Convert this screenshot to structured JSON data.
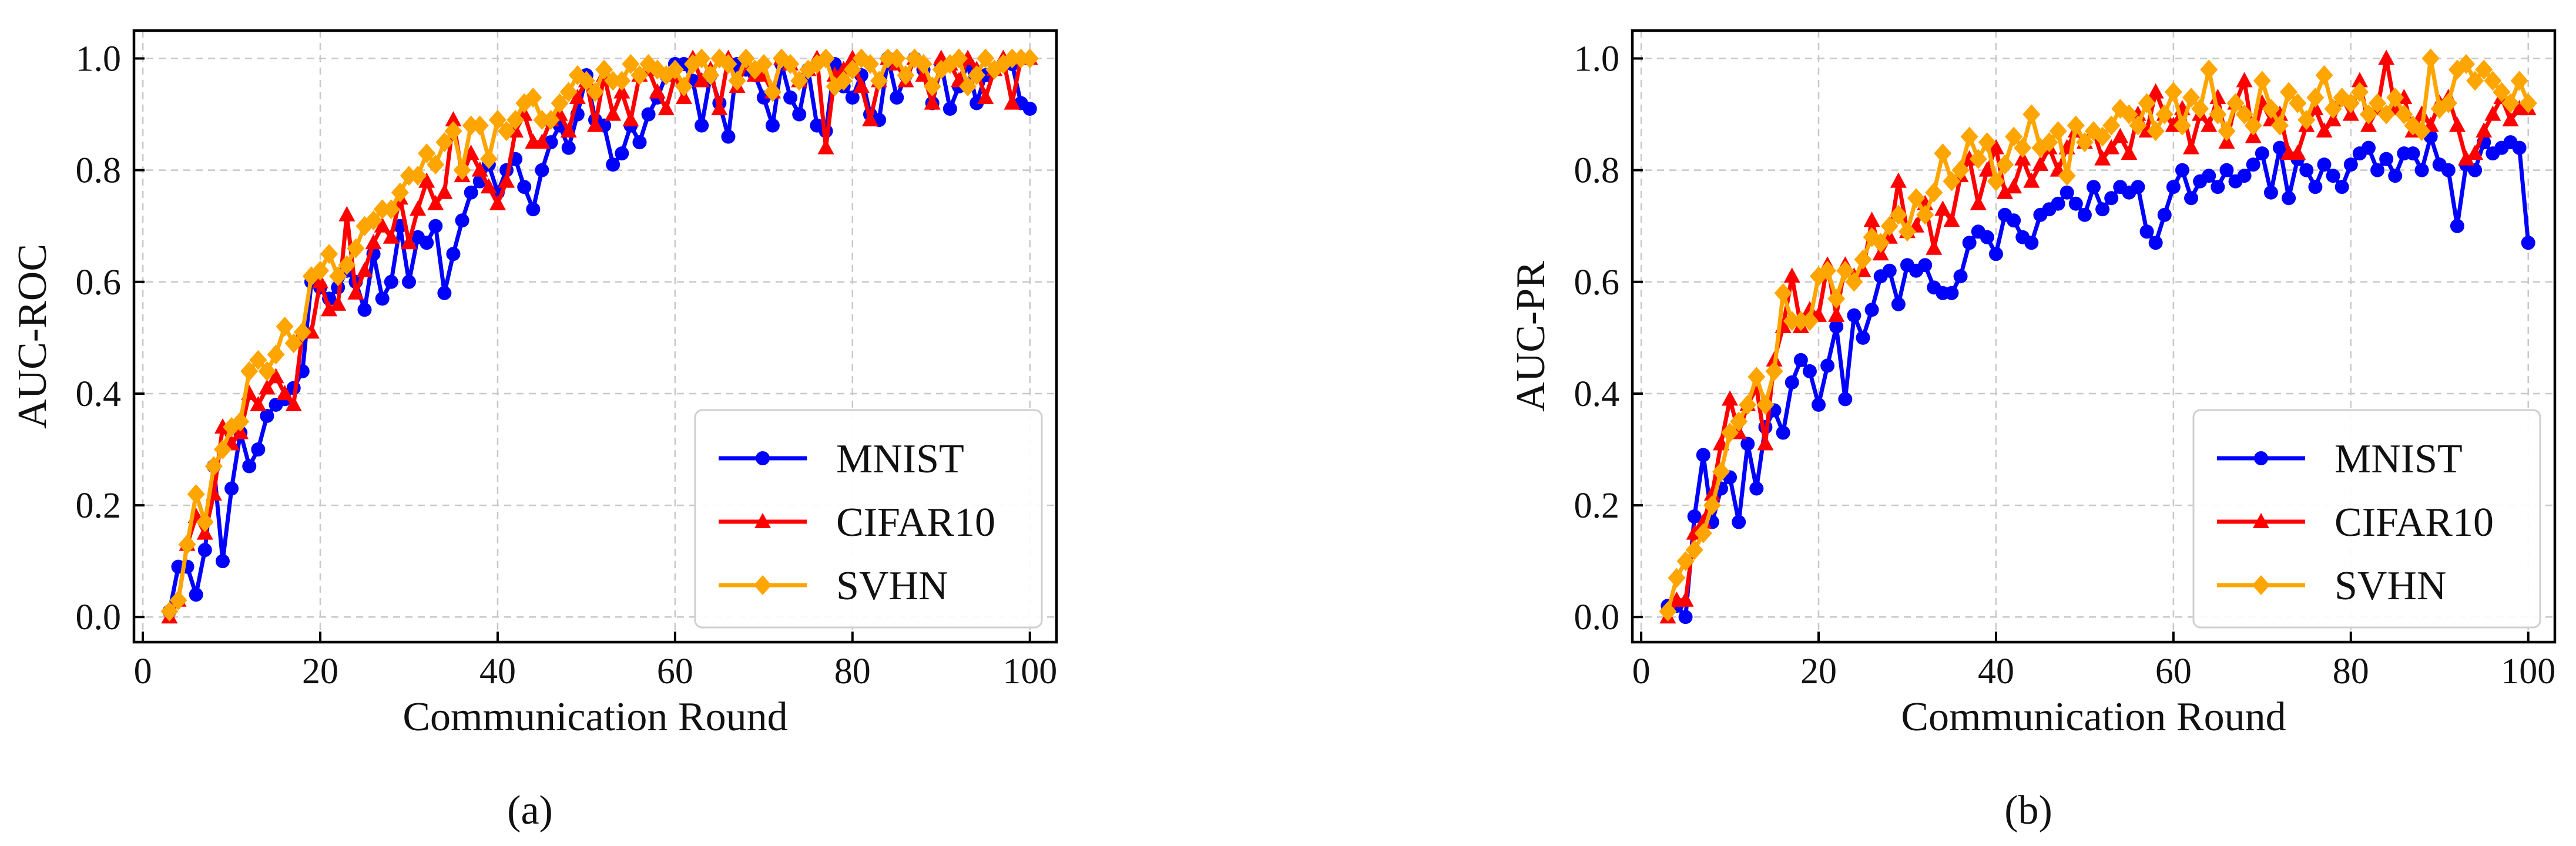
{
  "chart_data": [
    {
      "type": "line",
      "panel": "a",
      "caption": "(a)",
      "xlabel": "Communication Round",
      "ylabel": "AUC-ROC",
      "xlim": [
        -1,
        103
      ],
      "ylim": [
        -0.045,
        1.05
      ],
      "xticks": [
        0,
        20,
        40,
        60,
        80,
        100
      ],
      "yticks": [
        0.0,
        0.2,
        0.4,
        0.6,
        0.8,
        1.0
      ],
      "grid": true,
      "legend_position": "lower-right",
      "x": [
        3,
        4,
        5,
        6,
        7,
        8,
        9,
        10,
        11,
        12,
        13,
        14,
        15,
        16,
        17,
        18,
        19,
        20,
        21,
        22,
        23,
        24,
        25,
        26,
        27,
        28,
        29,
        30,
        31,
        32,
        33,
        34,
        35,
        36,
        37,
        38,
        39,
        40,
        41,
        42,
        43,
        44,
        45,
        46,
        47,
        48,
        49,
        50,
        51,
        52,
        53,
        54,
        55,
        56,
        57,
        58,
        59,
        60,
        61,
        62,
        63,
        64,
        65,
        66,
        67,
        68,
        69,
        70,
        71,
        72,
        73,
        74,
        75,
        76,
        77,
        78,
        79,
        80,
        81,
        82,
        83,
        84,
        85,
        86,
        87,
        88,
        89,
        90,
        91,
        92,
        93,
        94,
        95,
        96,
        97,
        98,
        99,
        100
      ],
      "series": [
        {
          "name": "MNIST",
          "color": "#0000ff",
          "marker": "circle",
          "values": [
            0.01,
            0.09,
            0.09,
            0.04,
            0.12,
            0.27,
            0.1,
            0.23,
            0.33,
            0.27,
            0.3,
            0.36,
            0.38,
            0.39,
            0.41,
            0.44,
            0.6,
            0.59,
            0.57,
            0.59,
            0.62,
            0.6,
            0.55,
            0.65,
            0.57,
            0.6,
            0.7,
            0.6,
            0.68,
            0.67,
            0.7,
            0.58,
            0.65,
            0.71,
            0.76,
            0.78,
            0.81,
            0.76,
            0.8,
            0.82,
            0.77,
            0.73,
            0.8,
            0.85,
            0.88,
            0.84,
            0.9,
            0.97,
            0.89,
            0.88,
            0.81,
            0.83,
            0.88,
            0.85,
            0.9,
            0.93,
            0.97,
            0.99,
            0.99,
            0.96,
            0.88,
            0.97,
            0.92,
            0.86,
            0.99,
            0.98,
            0.97,
            0.93,
            0.88,
            0.99,
            0.93,
            0.9,
            0.98,
            0.88,
            0.87,
            0.99,
            0.95,
            0.93,
            0.97,
            0.9,
            0.89,
            1.0,
            0.93,
            0.97,
            1.0,
            0.98,
            0.92,
            0.99,
            0.91,
            0.95,
            0.99,
            0.92,
            0.97,
            0.98,
            0.99,
            0.99,
            0.92,
            0.91
          ]
        },
        {
          "name": "CIFAR10",
          "color": "#ff0000",
          "marker": "triangle",
          "values": [
            0.0,
            0.03,
            0.13,
            0.18,
            0.15,
            0.22,
            0.34,
            0.31,
            0.33,
            0.4,
            0.38,
            0.41,
            0.43,
            0.4,
            0.38,
            0.51,
            0.51,
            0.6,
            0.55,
            0.56,
            0.72,
            0.58,
            0.62,
            0.67,
            0.7,
            0.68,
            0.75,
            0.67,
            0.73,
            0.78,
            0.74,
            0.76,
            0.89,
            0.79,
            0.83,
            0.8,
            0.77,
            0.74,
            0.78,
            0.87,
            0.9,
            0.85,
            0.85,
            0.89,
            0.9,
            0.87,
            0.93,
            0.96,
            0.88,
            0.97,
            0.9,
            0.94,
            0.89,
            0.97,
            0.98,
            0.94,
            0.91,
            0.97,
            0.93,
            1.0,
            0.96,
            0.98,
            0.91,
            1.0,
            0.95,
            0.99,
            0.97,
            0.97,
            0.94,
            1.0,
            0.99,
            0.96,
            0.98,
            1.0,
            0.84,
            0.97,
            0.98,
            1.0,
            0.95,
            0.89,
            0.96,
            1.0,
            0.99,
            0.96,
            1.0,
            0.97,
            0.92,
            1.0,
            0.99,
            0.96,
            1.0,
            0.98,
            0.93,
            0.98,
            1.0,
            0.92,
            1.0,
            1.0
          ]
        },
        {
          "name": "SVHN",
          "color": "#ffa500",
          "marker": "diamond",
          "values": [
            0.01,
            0.03,
            0.13,
            0.22,
            0.17,
            0.27,
            0.3,
            0.34,
            0.35,
            0.44,
            0.46,
            0.44,
            0.47,
            0.52,
            0.49,
            0.51,
            0.61,
            0.62,
            0.65,
            0.61,
            0.63,
            0.66,
            0.7,
            0.71,
            0.73,
            0.73,
            0.76,
            0.79,
            0.79,
            0.83,
            0.81,
            0.85,
            0.87,
            0.8,
            0.88,
            0.88,
            0.82,
            0.89,
            0.87,
            0.89,
            0.92,
            0.93,
            0.89,
            0.89,
            0.92,
            0.94,
            0.97,
            0.96,
            0.94,
            0.98,
            0.96,
            0.96,
            0.99,
            0.97,
            0.99,
            0.98,
            0.97,
            0.98,
            0.95,
            0.99,
            1.0,
            0.97,
            1.0,
            0.99,
            0.96,
            1.0,
            0.98,
            0.99,
            0.94,
            1.0,
            0.99,
            0.96,
            0.98,
            0.99,
            1.0,
            0.95,
            0.96,
            0.98,
            1.0,
            0.99,
            0.96,
            1.0,
            1.0,
            0.97,
            1.0,
            0.99,
            0.95,
            0.98,
            0.99,
            1.0,
            0.95,
            0.97,
            1.0,
            0.98,
            0.99,
            1.0,
            1.0,
            1.0
          ]
        }
      ]
    },
    {
      "type": "line",
      "panel": "b",
      "caption": "(b)",
      "xlabel": "Communication Round",
      "ylabel": "AUC-PR",
      "xlim": [
        -1,
        103
      ],
      "ylim": [
        -0.045,
        1.05
      ],
      "xticks": [
        0,
        20,
        40,
        60,
        80,
        100
      ],
      "yticks": [
        0.0,
        0.2,
        0.4,
        0.6,
        0.8,
        1.0
      ],
      "grid": true,
      "legend_position": "lower-right",
      "x": [
        3,
        4,
        5,
        6,
        7,
        8,
        9,
        10,
        11,
        12,
        13,
        14,
        15,
        16,
        17,
        18,
        19,
        20,
        21,
        22,
        23,
        24,
        25,
        26,
        27,
        28,
        29,
        30,
        31,
        32,
        33,
        34,
        35,
        36,
        37,
        38,
        39,
        40,
        41,
        42,
        43,
        44,
        45,
        46,
        47,
        48,
        49,
        50,
        51,
        52,
        53,
        54,
        55,
        56,
        57,
        58,
        59,
        60,
        61,
        62,
        63,
        64,
        65,
        66,
        67,
        68,
        69,
        70,
        71,
        72,
        73,
        74,
        75,
        76,
        77,
        78,
        79,
        80,
        81,
        82,
        83,
        84,
        85,
        86,
        87,
        88,
        89,
        90,
        91,
        92,
        93,
        94,
        95,
        96,
        97,
        98,
        99,
        100
      ],
      "series": [
        {
          "name": "MNIST",
          "color": "#0000ff",
          "marker": "circle",
          "values": [
            0.02,
            0.02,
            0.0,
            0.18,
            0.29,
            0.17,
            0.23,
            0.25,
            0.17,
            0.31,
            0.23,
            0.34,
            0.37,
            0.33,
            0.42,
            0.46,
            0.44,
            0.38,
            0.45,
            0.52,
            0.39,
            0.54,
            0.5,
            0.55,
            0.61,
            0.62,
            0.56,
            0.63,
            0.62,
            0.63,
            0.59,
            0.58,
            0.58,
            0.61,
            0.67,
            0.69,
            0.68,
            0.65,
            0.72,
            0.71,
            0.68,
            0.67,
            0.72,
            0.73,
            0.74,
            0.76,
            0.74,
            0.72,
            0.77,
            0.73,
            0.75,
            0.77,
            0.76,
            0.77,
            0.69,
            0.67,
            0.72,
            0.77,
            0.8,
            0.75,
            0.78,
            0.79,
            0.77,
            0.8,
            0.78,
            0.79,
            0.81,
            0.83,
            0.76,
            0.84,
            0.75,
            0.82,
            0.8,
            0.77,
            0.81,
            0.79,
            0.77,
            0.81,
            0.83,
            0.84,
            0.8,
            0.82,
            0.79,
            0.83,
            0.83,
            0.8,
            0.86,
            0.81,
            0.8,
            0.7,
            0.81,
            0.8,
            0.85,
            0.83,
            0.84,
            0.85,
            0.84,
            0.67
          ]
        },
        {
          "name": "CIFAR10",
          "color": "#ff0000",
          "marker": "triangle",
          "values": [
            0.0,
            0.03,
            0.03,
            0.15,
            0.17,
            0.22,
            0.31,
            0.39,
            0.33,
            0.38,
            0.41,
            0.31,
            0.46,
            0.52,
            0.61,
            0.52,
            0.55,
            0.54,
            0.63,
            0.54,
            0.63,
            0.61,
            0.62,
            0.71,
            0.65,
            0.68,
            0.78,
            0.69,
            0.7,
            0.74,
            0.66,
            0.73,
            0.71,
            0.79,
            0.82,
            0.74,
            0.8,
            0.84,
            0.76,
            0.77,
            0.82,
            0.78,
            0.81,
            0.84,
            0.8,
            0.84,
            0.87,
            0.85,
            0.87,
            0.82,
            0.84,
            0.86,
            0.83,
            0.9,
            0.87,
            0.94,
            0.9,
            0.88,
            0.91,
            0.84,
            0.9,
            0.88,
            0.93,
            0.85,
            0.92,
            0.96,
            0.86,
            0.92,
            0.89,
            0.9,
            0.83,
            0.83,
            0.88,
            0.91,
            0.87,
            0.89,
            0.93,
            0.9,
            0.96,
            0.88,
            0.91,
            1.0,
            0.91,
            0.93,
            0.87,
            0.9,
            0.88,
            0.92,
            0.93,
            0.88,
            0.82,
            0.83,
            0.87,
            0.9,
            0.93,
            0.89,
            0.91,
            0.91
          ]
        },
        {
          "name": "SVHN",
          "color": "#ffa500",
          "marker": "diamond",
          "values": [
            0.01,
            0.07,
            0.1,
            0.12,
            0.15,
            0.2,
            0.26,
            0.33,
            0.35,
            0.38,
            0.43,
            0.38,
            0.44,
            0.58,
            0.53,
            0.53,
            0.53,
            0.61,
            0.62,
            0.57,
            0.62,
            0.6,
            0.64,
            0.68,
            0.67,
            0.7,
            0.72,
            0.69,
            0.75,
            0.72,
            0.76,
            0.83,
            0.78,
            0.8,
            0.86,
            0.82,
            0.85,
            0.78,
            0.81,
            0.86,
            0.84,
            0.9,
            0.84,
            0.85,
            0.87,
            0.79,
            0.88,
            0.85,
            0.87,
            0.86,
            0.88,
            0.91,
            0.9,
            0.88,
            0.92,
            0.87,
            0.9,
            0.94,
            0.88,
            0.93,
            0.91,
            0.98,
            0.9,
            0.87,
            0.92,
            0.9,
            0.88,
            0.96,
            0.91,
            0.88,
            0.94,
            0.92,
            0.89,
            0.93,
            0.97,
            0.91,
            0.93,
            0.92,
            0.94,
            0.9,
            0.92,
            0.9,
            0.93,
            0.9,
            0.88,
            0.87,
            1.0,
            0.91,
            0.92,
            0.98,
            0.99,
            0.96,
            0.98,
            0.96,
            0.94,
            0.92,
            0.96,
            0.92
          ]
        }
      ]
    }
  ]
}
